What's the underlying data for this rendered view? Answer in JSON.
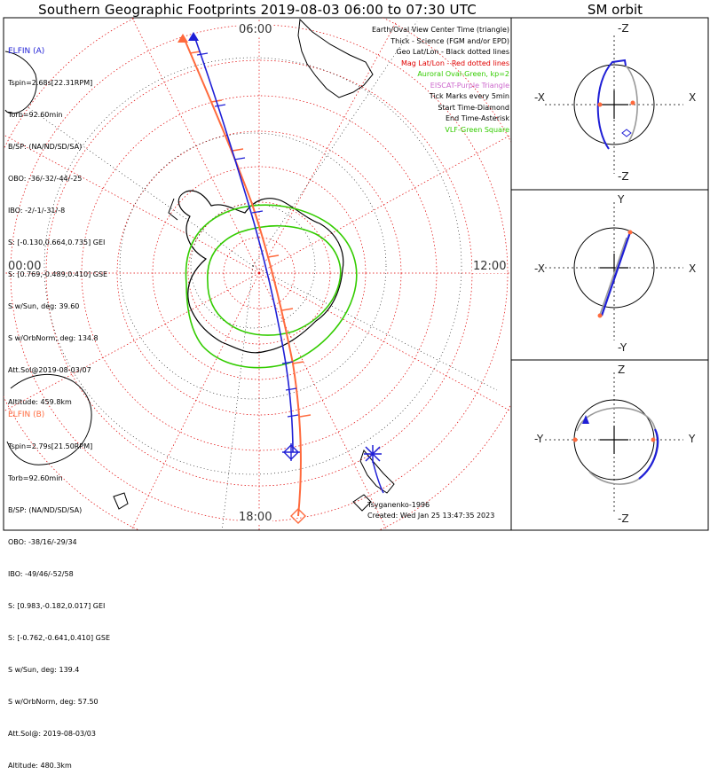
{
  "title": "Southern Geographic Footprints 2019-08-03 06:00 to 07:30 UTC",
  "sm_title": "SM orbit",
  "clock_labels": {
    "top": "06:00",
    "left": "00:00",
    "right": "12:00",
    "bottom": "18:00"
  },
  "elfin_a": {
    "header": "ELFIN (A)",
    "color": "#1f1fd6",
    "lines": [
      "Tspin=2.68s[22.31RPM]",
      "Torb=92.60min",
      "B/SP: (NA/ND/SD/SA)",
      "OBO: -36/-32/-44/-25",
      "IBO: -2/-1/-31/-8",
      "S: [-0.130,0.664,0.735] GEI",
      "S: [0.769,-0.489,0.410] GSE",
      "S w/Sun, deg: 39.60",
      "S w/OrbNorm, deg: 134.8",
      "Att.Sol@2019-08-03/07",
      "Altitude: 459.8km"
    ]
  },
  "elfin_b": {
    "header": "ELFIN (B)",
    "color": "#ff6a3d",
    "lines": [
      "Tspin=2.79s[21.50RPM]",
      "Torb=92.60min",
      "B/SP: (NA/ND/SD/SA)",
      "OBO: -38/16/-29/34",
      "IBO: -49/46/-52/58",
      "S: [0.983,-0.182,0.017] GEI",
      "S: [-0.762,-0.641,0.410] GSE",
      "S w/Sun, deg: 139.4",
      "S w/OrbNorm, deg: 57.50",
      "Att.Sol@: 2019-08-03/03",
      "Altitude: 480.3km"
    ]
  },
  "legend": [
    {
      "text": "Earth/Oval View Center Time (triangle)",
      "color": "#000000"
    },
    {
      "text": "Thick - Science (FGM and/or EPD)",
      "color": "#000000"
    },
    {
      "text": "Geo Lat/Lon - Black dotted lines",
      "color": "#000000"
    },
    {
      "text": "Mag Lat/Lon - Red dotted lines",
      "color": "#e00000"
    },
    {
      "text": "Auroral Oval-Green, kp=2",
      "color": "#33cc00"
    },
    {
      "text": "EISCAT-Purple Triangle",
      "color": "#cc66cc"
    },
    {
      "text": "Tick Marks every 5min",
      "color": "#000000"
    },
    {
      "text": "Start Time-Diamond",
      "color": "#000000"
    },
    {
      "text": "End Time-Asterisk",
      "color": "#000000"
    },
    {
      "text": "VLF-Green Square",
      "color": "#33cc00"
    }
  ],
  "credits": {
    "model": "Tsyganenko-1996",
    "created": "Created: Wed Jan 25 13:47:35 2023"
  },
  "sm_panels": [
    {
      "top": "-Z",
      "bottom": "-Z",
      "left": "-X",
      "right": "X"
    },
    {
      "top": "Y",
      "bottom": "-Y",
      "left": "-X",
      "right": "X"
    },
    {
      "top": "Z",
      "bottom": "-Z",
      "left": "-Y",
      "right": "Y"
    }
  ],
  "colors": {
    "elfin_a": "#1f1fd6",
    "elfin_b": "#ff6a3d",
    "auroral_oval": "#33cc00",
    "mag_grid": "#e00000",
    "geo_grid": "#000000"
  }
}
